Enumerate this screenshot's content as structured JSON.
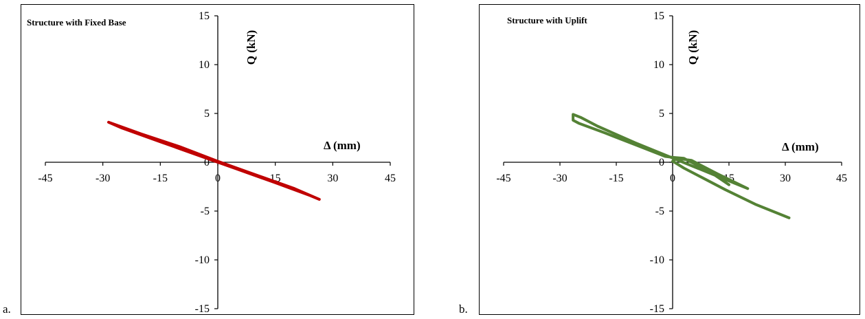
{
  "panels": [
    {
      "letter": "a.",
      "title": "Structure with Fixed Base",
      "line_color": "#c00000"
    },
    {
      "letter": "b.",
      "title": "Structure with Uplift",
      "line_color": "#548235"
    }
  ],
  "chart_data": [
    {
      "type": "line",
      "title": "Structure with Fixed Base",
      "xlabel": "Δ (mm)",
      "ylabel": "Q (kN)",
      "xlim": [
        -45,
        45
      ],
      "ylim": [
        -15,
        15
      ],
      "x_ticks": [
        "-45",
        "-30",
        "-15",
        "0",
        "15",
        "30",
        "45"
      ],
      "y_ticks": [
        "15",
        "10",
        "5",
        "0",
        "-5",
        "-10",
        "-15"
      ],
      "grid": false,
      "legend": "none",
      "series": [
        {
          "color": "#c00000",
          "x": [
            -28.5,
            -20,
            -10,
            0,
            10,
            20,
            26.5,
            24,
            15,
            5,
            -5,
            -15,
            -25,
            -28.5
          ],
          "y": [
            4.1,
            2.9,
            1.6,
            0.1,
            -1.3,
            -2.7,
            -3.8,
            -3.4,
            -2.1,
            -0.7,
            0.7,
            2.1,
            3.5,
            4.1
          ]
        }
      ]
    },
    {
      "type": "line",
      "title": "Structure with Uplift",
      "xlabel": "Δ (mm)",
      "ylabel": "Q (kN)",
      "xlim": [
        -45,
        45
      ],
      "ylim": [
        -15,
        15
      ],
      "x_ticks": [
        "-45",
        "-30",
        "-15",
        "0",
        "15",
        "30",
        "45"
      ],
      "y_ticks": [
        "15",
        "10",
        "5",
        "0",
        "-5",
        "-10",
        "-15"
      ],
      "grid": false,
      "legend": "none",
      "series": [
        {
          "color": "#548235",
          "x": [
            31,
            22,
            14,
            8,
            3,
            0.5,
            0,
            1,
            5,
            12,
            20,
            -10,
            -20,
            -24.5,
            -26.5,
            -26.5,
            -25,
            -18,
            -10,
            -2,
            0,
            3,
            10,
            15
          ],
          "y": [
            -5.7,
            -4.3,
            -2.8,
            -1.6,
            -0.6,
            0.0,
            0.1,
            0.4,
            0.2,
            -1.2,
            -2.7,
            2.0,
            3.7,
            4.6,
            4.9,
            4.3,
            4.0,
            3.0,
            1.8,
            0.6,
            0.5,
            0.4,
            -1.0,
            -2.3
          ]
        }
      ]
    }
  ]
}
